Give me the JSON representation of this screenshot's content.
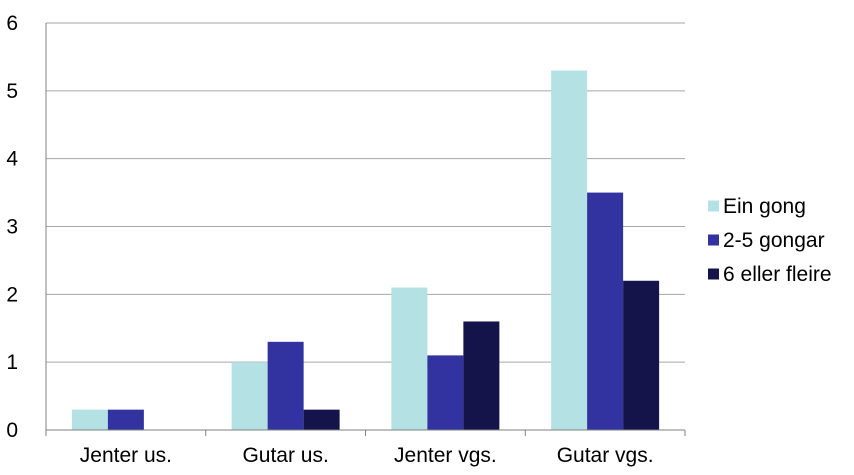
{
  "chart_data": {
    "type": "bar",
    "title": "",
    "xlabel": "",
    "ylabel": "",
    "ylim": [
      0,
      6
    ],
    "yticks": [
      0,
      1,
      2,
      3,
      4,
      5,
      6
    ],
    "grid": true,
    "legend_position": "right",
    "categories": [
      "Jenter us.",
      "Gutar us.",
      "Jenter vgs.",
      "Gutar vgs."
    ],
    "series": [
      {
        "name": "Ein gong",
        "color": "#b4e1e4",
        "values": [
          0.3,
          1.0,
          2.1,
          5.3
        ]
      },
      {
        "name": "2-5 gongar",
        "color": "#3232a0",
        "values": [
          0.3,
          1.3,
          1.1,
          3.5
        ]
      },
      {
        "name": "6 eller fleire",
        "color": "#14144b",
        "values": [
          0,
          0.3,
          1.6,
          2.2
        ]
      }
    ]
  }
}
